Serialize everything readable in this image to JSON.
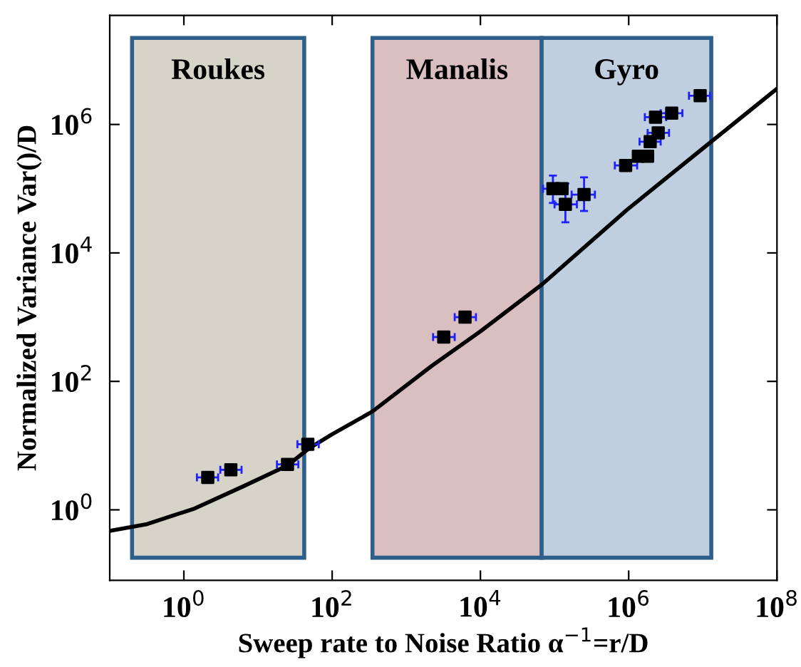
{
  "chart_data": {
    "type": "scatter",
    "xlabel": "Sweep rate to Noise Ratio α$^{−1}$=r/D",
    "ylabel": "Normalized Variance Var()/D",
    "log": "xy",
    "grid": false,
    "legend": false,
    "marker": "square",
    "xlim": [
      0.1,
      100000000
    ],
    "ylim": [
      0.08,
      50000000
    ],
    "xticks": [
      {
        "value": 1,
        "label": "10$^{0}$"
      },
      {
        "value": 100,
        "label": "10$^{2}$"
      },
      {
        "value": 10000,
        "label": "10$^{4}$"
      },
      {
        "value": 1000000,
        "label": "10$^{6}$"
      },
      {
        "value": 100000000,
        "label": "10$^{8}$"
      }
    ],
    "yticks": [
      {
        "value": 1,
        "label": "10$^{0}$"
      },
      {
        "value": 100,
        "label": "10$^{2}$"
      },
      {
        "value": 10000,
        "label": "10$^{4}$"
      },
      {
        "value": 1000000,
        "label": "10$^{6}$"
      }
    ],
    "bands": [
      {
        "axis": "x",
        "from": 0.2,
        "to": 42,
        "label": "Roukes",
        "color": "#d6d4c8"
      },
      {
        "axis": "x",
        "from": 350,
        "to": 67000,
        "label": "Manalis",
        "color": "#d9bfbf"
      },
      {
        "axis": "x",
        "from": 67000,
        "to": 13000000,
        "label": "Gyro",
        "color": "#bfcfe0"
      }
    ],
    "series": [
      {
        "type": "scatter",
        "color": "#000000",
        "x": [
          2.1,
          4.3,
          25,
          47,
          3200,
          6200,
          95000,
          126000,
          140000,
          250000,
          910000,
          1350000,
          1800000,
          1950000,
          2500000,
          2300000,
          3800000,
          9200000
        ],
        "values": [
          3.2,
          4.2,
          5.1,
          10.5,
          490,
          1000,
          100000,
          100000,
          57000,
          81000,
          230000,
          320000,
          320000,
          540000,
          740000,
          1300000,
          1500000,
          2800000
        ],
        "xerrors": [
          [
            1.5,
            2.9
          ],
          [
            3.1,
            6
          ],
          [
            18,
            35
          ],
          [
            34,
            66
          ],
          [
            2300,
            4500
          ],
          [
            4500,
            8700
          ],
          [
            70000,
            150000
          ],
          null,
          [
            100000,
            200000
          ],
          [
            170000,
            350000
          ],
          [
            650000,
            1300000
          ],
          null,
          null,
          [
            1400000,
            2700000
          ],
          [
            1800000,
            3500000
          ],
          [
            1650000,
            3200000
          ],
          [
            2700000,
            5300000
          ],
          [
            6500000,
            12500000
          ]
        ],
        "errors": [
          null,
          null,
          null,
          null,
          null,
          null,
          [
            60000,
            160000
          ],
          null,
          [
            30000,
            120000
          ],
          [
            45000,
            150000
          ],
          null,
          null,
          null,
          null,
          null,
          null,
          null,
          null
        ]
      },
      {
        "type": "line",
        "color": "#000000",
        "marker": "none",
        "line_style": "solid",
        "x": [
          0.1,
          0.32,
          1.4,
          6.2,
          25,
          49,
          100,
          350,
          2200,
          10000,
          67000,
          950000,
          13000000,
          100000000
        ],
        "values": [
          0.47,
          0.6,
          1.05,
          2.3,
          4.9,
          9.1,
          15,
          34,
          174,
          600,
          3200,
          47000,
          540000,
          3600000
        ]
      }
    ]
  }
}
